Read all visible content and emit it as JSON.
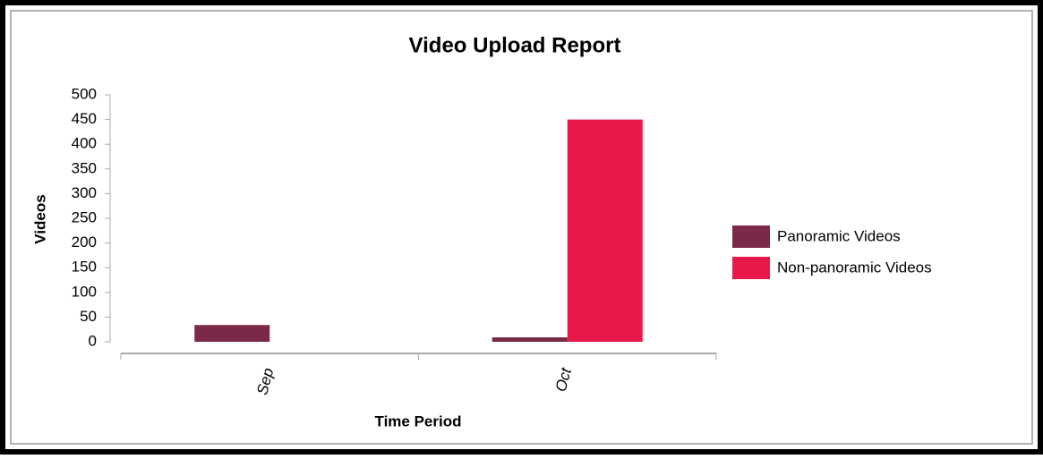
{
  "chart_data": {
    "type": "bar",
    "title": "Video Upload Report",
    "x_label": "Time Period",
    "y_label": "Videos",
    "categories": [
      "Sep",
      "Oct"
    ],
    "series": [
      {
        "name": "Panoramic Videos",
        "color": "#7a2a48",
        "values": [
          34,
          9
        ]
      },
      {
        "name": "Non-panoramic Videos",
        "color": "#e8194a",
        "values": [
          0,
          450
        ]
      }
    ],
    "ylim": [
      0,
      500
    ],
    "yticks": [
      0,
      50,
      100,
      150,
      200,
      250,
      300,
      350,
      400,
      450,
      500
    ],
    "legend": "right"
  }
}
